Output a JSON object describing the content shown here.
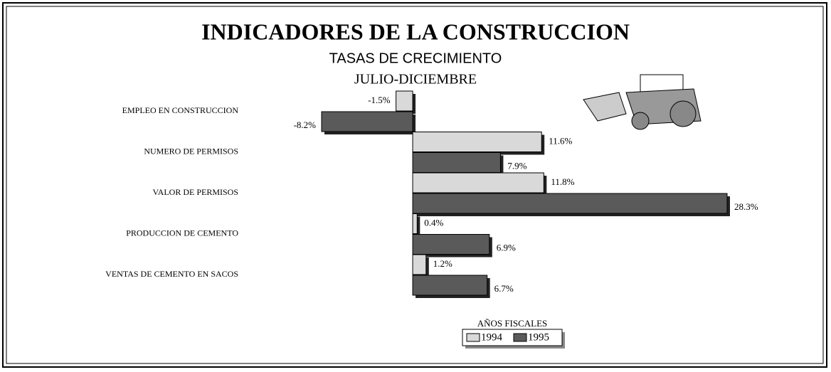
{
  "chart_data": {
    "type": "hbar",
    "title": "INDICADORES DE LA CONSTRUCCION",
    "subtitle": [
      "TASAS DE CRECIMIENTO",
      "JULIO-DICIEMBRE"
    ],
    "categories": [
      "EMPLEO EN CONSTRUCCION",
      "NUMERO DE PERMISOS",
      "VALOR DE PERMISOS",
      "PRODUCCION DE CEMENTO",
      "VENTAS DE CEMENTO EN SACOS"
    ],
    "legend_title": "AÑOS FISCALES",
    "series": [
      {
        "name": "1994",
        "color": "#d9d9d9",
        "values": [
          -1.5,
          11.6,
          11.8,
          0.4,
          1.2
        ],
        "value_labels": [
          "-1.5%",
          "11.6%",
          "11.8%",
          "0.4%",
          "1.2%"
        ]
      },
      {
        "name": "1995",
        "color": "#5a5a5a",
        "values": [
          -8.2,
          7.9,
          28.3,
          6.9,
          6.7
        ],
        "value_labels": [
          "-8.2%",
          "7.9%",
          "28.3%",
          "6.9%",
          "6.7%"
        ]
      }
    ]
  }
}
